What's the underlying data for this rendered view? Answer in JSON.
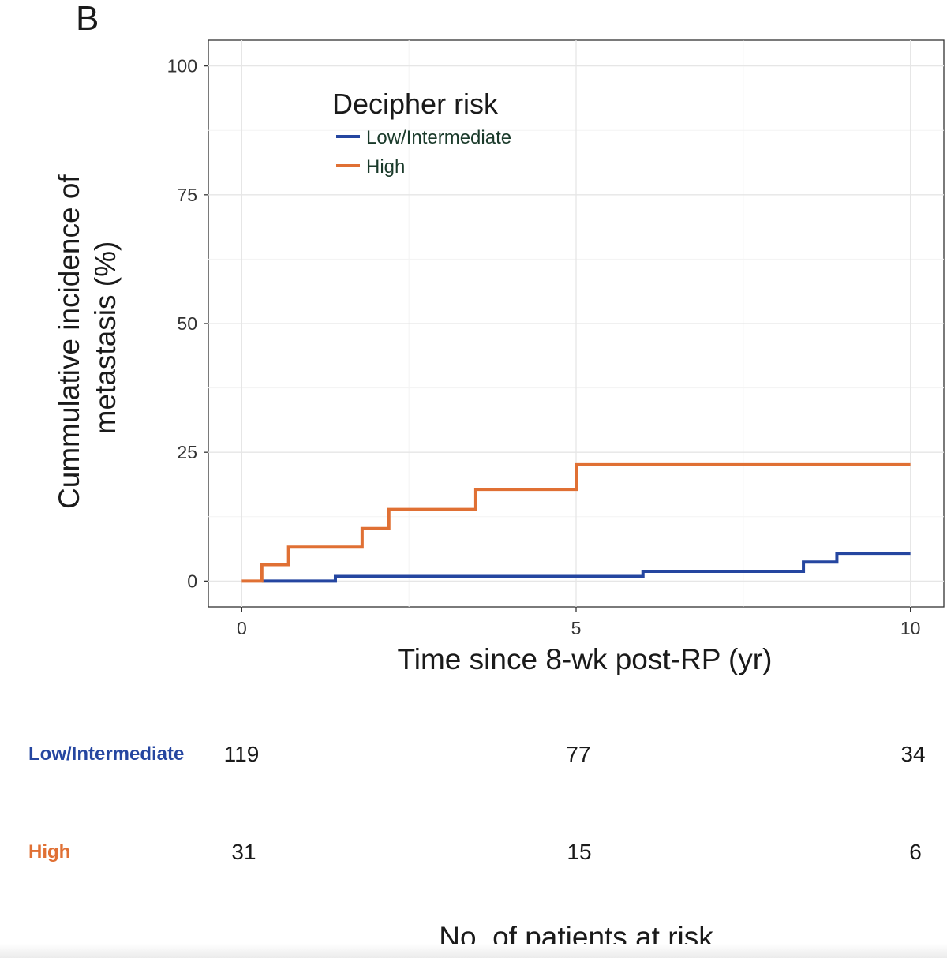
{
  "panel_label": "B",
  "chart_data": {
    "type": "line",
    "step": true,
    "title": "",
    "xlabel": "Time since 8-wk post-RP (yr)",
    "ylabel_lines": [
      "Cummulative incidence of",
      "metastasis (%)"
    ],
    "xlim": [
      -0.5,
      10.5
    ],
    "ylim": [
      -5,
      105
    ],
    "x_ticks": [
      0,
      5,
      10
    ],
    "y_ticks": [
      0,
      25,
      50,
      75,
      100
    ],
    "grid": true,
    "legend_title": "Decipher risk",
    "legend_position": "top-left",
    "series": [
      {
        "name": "Low/Intermediate",
        "color": "#2546a0",
        "points": [
          [
            0.3,
            0
          ],
          [
            1.4,
            0.9
          ],
          [
            6.0,
            1.9
          ],
          [
            8.4,
            3.7
          ],
          [
            8.9,
            5.4
          ],
          [
            10.0,
            5.4
          ]
        ]
      },
      {
        "name": "High",
        "color": "#e07034",
        "points": [
          [
            0.0,
            0
          ],
          [
            0.3,
            3.2
          ],
          [
            0.7,
            6.6
          ],
          [
            1.8,
            10.2
          ],
          [
            2.2,
            13.9
          ],
          [
            3.5,
            17.8
          ],
          [
            5.0,
            22.6
          ],
          [
            10.0,
            22.6
          ]
        ]
      }
    ]
  },
  "risk_table": {
    "caption": "No. of patients at risk",
    "times": [
      0,
      5,
      10
    ],
    "rows": [
      {
        "name": "Low/Intermediate",
        "color": "#2546a0",
        "counts": [
          "119",
          "77",
          "34"
        ]
      },
      {
        "name": "High",
        "color": "#e07034",
        "counts": [
          "31",
          "15",
          "6"
        ]
      }
    ]
  }
}
